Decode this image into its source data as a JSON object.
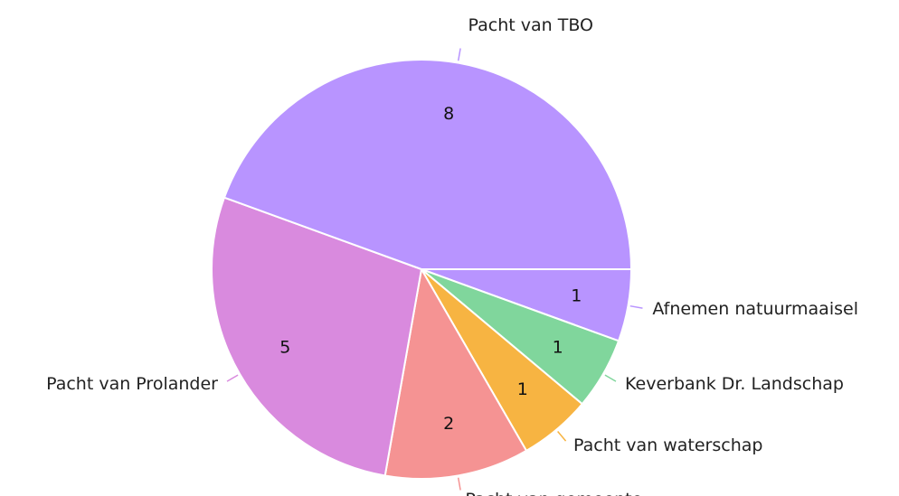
{
  "chart_data": {
    "type": "pie",
    "categories": [
      "Afnemen natuurmaaisel",
      "Keverbank Dr. Landschap",
      "Pacht van waterschap",
      "Pacht van gemeente",
      "Pacht van Prolander",
      "Pacht van TBO"
    ],
    "values": [
      1,
      1,
      1,
      2,
      5,
      8
    ],
    "colors": [
      "#b894ff",
      "#80d69c",
      "#f7b442",
      "#f59393",
      "#d98ade",
      "#b894ff"
    ]
  }
}
